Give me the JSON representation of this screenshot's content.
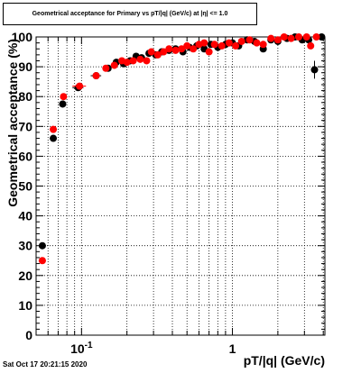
{
  "title": "Geometrical acceptance for Primary vs pT/|q| (GeV/c) at |η| <= 1.0",
  "timestamp": "Sat Oct 17 20:21:15 2020",
  "chart_data": {
    "type": "scatter",
    "title": "Geometrical acceptance for Primary vs pT/|q| (GeV/c) at |η| <= 1.0",
    "xlabel": "pT/|q| (GeV/c)",
    "ylabel": "Geometrical acceptance (%)",
    "xscale": "log",
    "xlim": [
      0.05,
      4.1
    ],
    "ylim": [
      0,
      100
    ],
    "grid": true,
    "x_tick_labels": [
      {
        "value": 0.1,
        "base": "10",
        "exponent": "-1"
      },
      {
        "value": 1,
        "base": "1",
        "exponent": ""
      }
    ],
    "y_tick_labels": [
      "0",
      "10",
      "20",
      "30",
      "40",
      "50",
      "60",
      "70",
      "80",
      "90",
      "100"
    ],
    "series": [
      {
        "color": "#000000",
        "points": [
          {
            "x": 0.055,
            "y": 30,
            "xerr": 0.003
          },
          {
            "x": 0.065,
            "y": 66,
            "xerr": 0.002
          },
          {
            "x": 0.075,
            "y": 77.5,
            "xerr": 0.002
          },
          {
            "x": 0.095,
            "y": 83,
            "xerr": 0.008
          },
          {
            "x": 0.125,
            "y": 87,
            "xerr": 0.01
          },
          {
            "x": 0.15,
            "y": 89.5
          },
          {
            "x": 0.17,
            "y": 91.5
          },
          {
            "x": 0.19,
            "y": 91
          },
          {
            "x": 0.21,
            "y": 92
          },
          {
            "x": 0.23,
            "y": 93.5
          },
          {
            "x": 0.25,
            "y": 93
          },
          {
            "x": 0.28,
            "y": 94.5
          },
          {
            "x": 0.31,
            "y": 94
          },
          {
            "x": 0.34,
            "y": 95
          },
          {
            "x": 0.38,
            "y": 95.5
          },
          {
            "x": 0.42,
            "y": 96
          },
          {
            "x": 0.47,
            "y": 95
          },
          {
            "x": 0.52,
            "y": 96.5
          },
          {
            "x": 0.58,
            "y": 97
          },
          {
            "x": 0.65,
            "y": 96
          },
          {
            "x": 0.72,
            "y": 97.5
          },
          {
            "x": 0.8,
            "y": 96.5
          },
          {
            "x": 0.9,
            "y": 97.5
          },
          {
            "x": 1.0,
            "y": 98
          },
          {
            "x": 1.1,
            "y": 97
          },
          {
            "x": 1.25,
            "y": 99
          },
          {
            "x": 1.4,
            "y": 98.5
          },
          {
            "x": 1.6,
            "y": 96
          },
          {
            "x": 1.8,
            "y": 99
          },
          {
            "x": 2.0,
            "y": 98.5
          },
          {
            "x": 2.3,
            "y": 99.5
          },
          {
            "x": 2.6,
            "y": 100
          },
          {
            "x": 2.9,
            "y": 99
          },
          {
            "x": 3.2,
            "y": 99
          },
          {
            "x": 3.5,
            "y": 89,
            "yerr": 3
          },
          {
            "x": 3.9,
            "y": 100
          }
        ]
      },
      {
        "color": "#ff0000",
        "points": [
          {
            "x": 0.055,
            "y": 25,
            "xerr": 0.003
          },
          {
            "x": 0.065,
            "y": 69,
            "xerr": 0.002
          },
          {
            "x": 0.076,
            "y": 80,
            "xerr": 0.002
          },
          {
            "x": 0.097,
            "y": 83.5,
            "xerr": 0.01
          },
          {
            "x": 0.125,
            "y": 87
          },
          {
            "x": 0.145,
            "y": 89.5
          },
          {
            "x": 0.165,
            "y": 90.5
          },
          {
            "x": 0.185,
            "y": 92
          },
          {
            "x": 0.2,
            "y": 91.5
          },
          {
            "x": 0.22,
            "y": 92
          },
          {
            "x": 0.245,
            "y": 92.5
          },
          {
            "x": 0.27,
            "y": 92
          },
          {
            "x": 0.29,
            "y": 95
          },
          {
            "x": 0.32,
            "y": 94
          },
          {
            "x": 0.35,
            "y": 95
          },
          {
            "x": 0.38,
            "y": 96
          },
          {
            "x": 0.42,
            "y": 95.5
          },
          {
            "x": 0.46,
            "y": 96
          },
          {
            "x": 0.5,
            "y": 97
          },
          {
            "x": 0.55,
            "y": 96
          },
          {
            "x": 0.6,
            "y": 97.5
          },
          {
            "x": 0.65,
            "y": 98
          },
          {
            "x": 0.7,
            "y": 95
          },
          {
            "x": 0.76,
            "y": 97.5
          },
          {
            "x": 0.85,
            "y": 97
          },
          {
            "x": 0.95,
            "y": 98
          },
          {
            "x": 1.05,
            "y": 97
          },
          {
            "x": 1.15,
            "y": 98.5
          },
          {
            "x": 1.3,
            "y": 99
          },
          {
            "x": 1.45,
            "y": 98
          },
          {
            "x": 1.6,
            "y": 97.5
          },
          {
            "x": 1.8,
            "y": 99.5
          },
          {
            "x": 2.0,
            "y": 99
          },
          {
            "x": 2.2,
            "y": 100
          },
          {
            "x": 2.45,
            "y": 99.5
          },
          {
            "x": 2.75,
            "y": 100
          },
          {
            "x": 3.1,
            "y": 100
          },
          {
            "x": 3.3,
            "y": 97
          },
          {
            "x": 3.6,
            "y": 100
          }
        ]
      }
    ]
  }
}
